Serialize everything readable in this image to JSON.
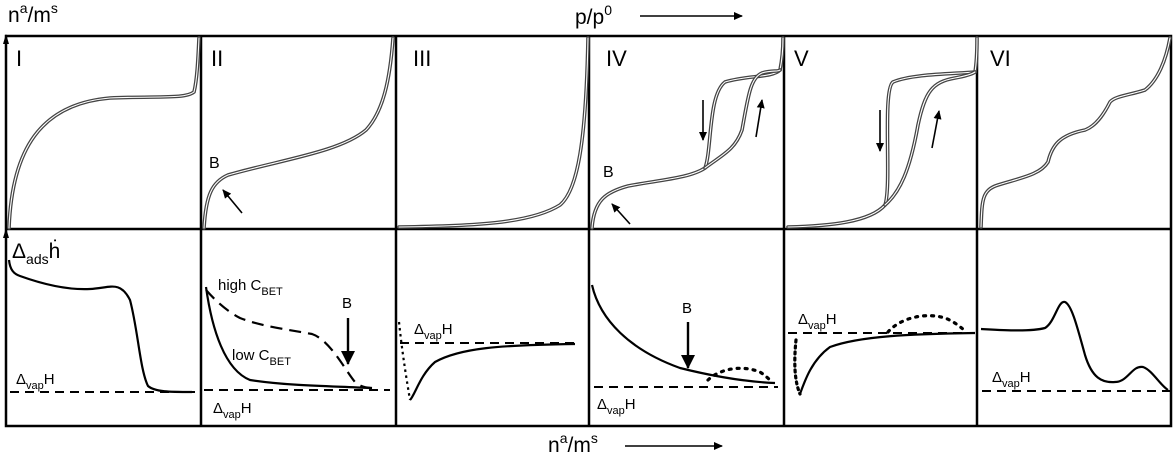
{
  "axes": {
    "top_y_label": "n",
    "top_y_label_sup": "a",
    "top_y_label_mid": "/m",
    "top_y_label_sup2": "s",
    "top_x_label": "p/p",
    "top_x_label_sup": "0",
    "bottom_y_label_pre": "Δ",
    "bottom_y_label_sub": "ads",
    "bottom_y_label_post": "ḣ",
    "bottom_x_label": "n",
    "bottom_x_label_sup": "a",
    "bottom_x_label_mid": "/m",
    "bottom_x_label_sup2": "s"
  },
  "panels": [
    {
      "numeral": "I"
    },
    {
      "numeral": "II"
    },
    {
      "numeral": "III"
    },
    {
      "numeral": "IV"
    },
    {
      "numeral": "V"
    },
    {
      "numeral": "VI"
    }
  ],
  "annotations": {
    "point_b": "B",
    "high_cbet_pre": "high C",
    "high_cbet_sub": "BET",
    "low_cbet_pre": "low C",
    "low_cbet_sub": "BET",
    "dvap_pre": "Δ",
    "dvap_sub": "vap",
    "dvap_post": "H"
  },
  "colors": {
    "isotherm_outer": "#444444",
    "isotherm_inner": "#ffffff",
    "line": "#000000",
    "background": "#ffffff"
  }
}
